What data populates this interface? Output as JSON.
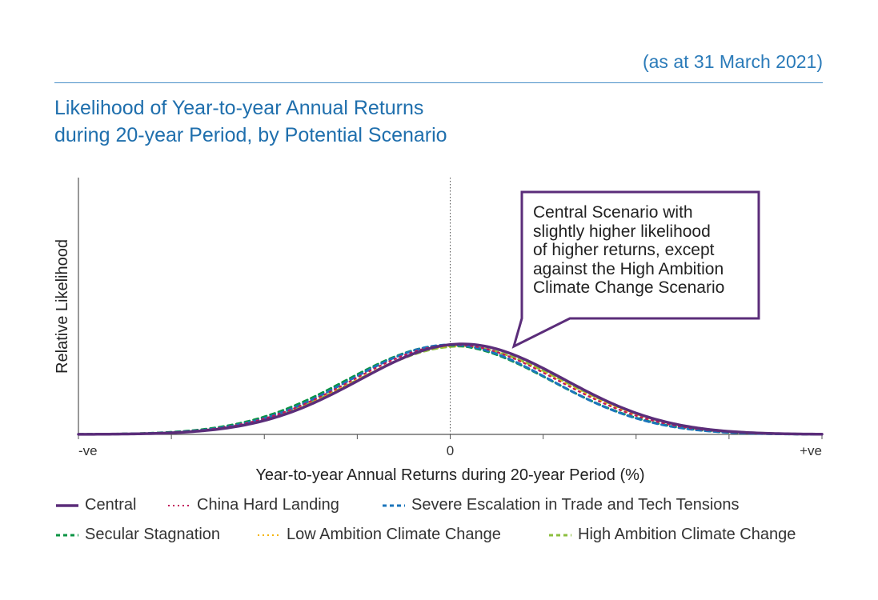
{
  "header": {
    "date_note": "(as at 31 March 2021)",
    "title_line1": "Likelihood of Year-to-year Annual Returns",
    "title_line2": "during 20-year Period, by Potential Scenario"
  },
  "callout": {
    "lines": [
      "Central Scenario with",
      "slightly higher likelihood",
      "of higher returns, except",
      "against the High Ambition",
      "Climate Change Scenario"
    ],
    "border_color": "#5b2d7a"
  },
  "chart_data": {
    "type": "line",
    "xlabel": "Year-to-year Annual Returns during 20-year Period (%)",
    "ylabel": "Relative Likelihood",
    "x_tick_labels": {
      "left": "-ve",
      "center": "0",
      "right": "+ve"
    },
    "x_range": [
      -4,
      4
    ],
    "y_range": [
      0,
      1
    ],
    "x_reference_line": 0,
    "series": [
      {
        "name": "Central",
        "mean": 0.13,
        "sd": 1.1,
        "peak": 0.352,
        "color": "#5b2d7a",
        "style": "solid"
      },
      {
        "name": "China Hard Landing",
        "mean": 0.05,
        "sd": 1.1,
        "peak": 0.349,
        "color": "#c2185b",
        "style": "dotted"
      },
      {
        "name": "Severe Escalation in Trade and Tech Tensions",
        "mean": 0.0,
        "sd": 1.08,
        "peak": 0.349,
        "color": "#1b75bb",
        "style": "dashed"
      },
      {
        "name": "Secular Stagnation",
        "mean": -0.02,
        "sd": 1.1,
        "peak": 0.347,
        "color": "#0b9444",
        "style": "dashed"
      },
      {
        "name": "Low Ambition Climate Change",
        "mean": 0.08,
        "sd": 1.1,
        "peak": 0.345,
        "color": "#f5b400",
        "style": "dotted"
      },
      {
        "name": "High Ambition Climate Change",
        "mean": 0.1,
        "sd": 1.12,
        "peak": 0.343,
        "color": "#8cbf3f",
        "style": "dashed"
      }
    ]
  }
}
